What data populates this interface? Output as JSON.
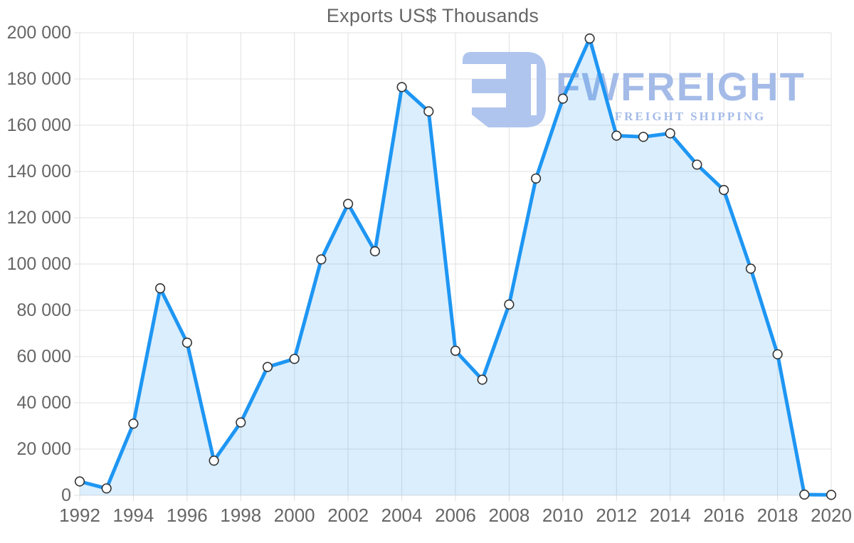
{
  "page": {
    "title": "Exports US$ Thousands"
  },
  "watermark": {
    "brand": "FWFREIGHT",
    "tagline": "FREIGHT SHIPPING"
  },
  "colors": {
    "line": "#1e96f3",
    "area_fill": "rgba(30,150,243,0.16)",
    "grid": "#e0e0e0",
    "axis_text": "#666666",
    "marker_fill": "#ffffff",
    "marker_stroke": "#333333",
    "title_text": "#666666",
    "watermark_text": "#a4bbe8",
    "watermark_icon": "#afc5ee"
  },
  "chart_data": {
    "type": "area",
    "title": "Exports US$ Thousands",
    "x": [
      1992,
      1993,
      1994,
      1995,
      1996,
      1997,
      1998,
      1999,
      2000,
      2001,
      2002,
      2003,
      2004,
      2005,
      2006,
      2007,
      2008,
      2009,
      2010,
      2011,
      2012,
      2013,
      2014,
      2015,
      2016,
      2017,
      2018,
      2019,
      2020
    ],
    "series": [
      {
        "name": "Exports US$ Thousands",
        "values": [
          6000,
          3000,
          31000,
          89500,
          66000,
          15000,
          31500,
          55500,
          59000,
          102000,
          126000,
          105500,
          176500,
          166000,
          62500,
          50000,
          82500,
          137000,
          171500,
          197500,
          155500,
          155000,
          156500,
          143000,
          132000,
          98000,
          61000,
          300,
          200
        ]
      }
    ],
    "ylim": [
      0,
      200000
    ],
    "y_tick_step": 20000,
    "y_tick_format": "space-separated thousands",
    "x_tick_step": 2,
    "x_tick_labels": [
      "1992",
      "1994",
      "1996",
      "1998",
      "2000",
      "2002",
      "2004",
      "2006",
      "2008",
      "2010",
      "2012",
      "2014",
      "2016",
      "2018",
      "2020"
    ],
    "grid": true,
    "legend": false,
    "marker": "white circle, dark outline"
  }
}
